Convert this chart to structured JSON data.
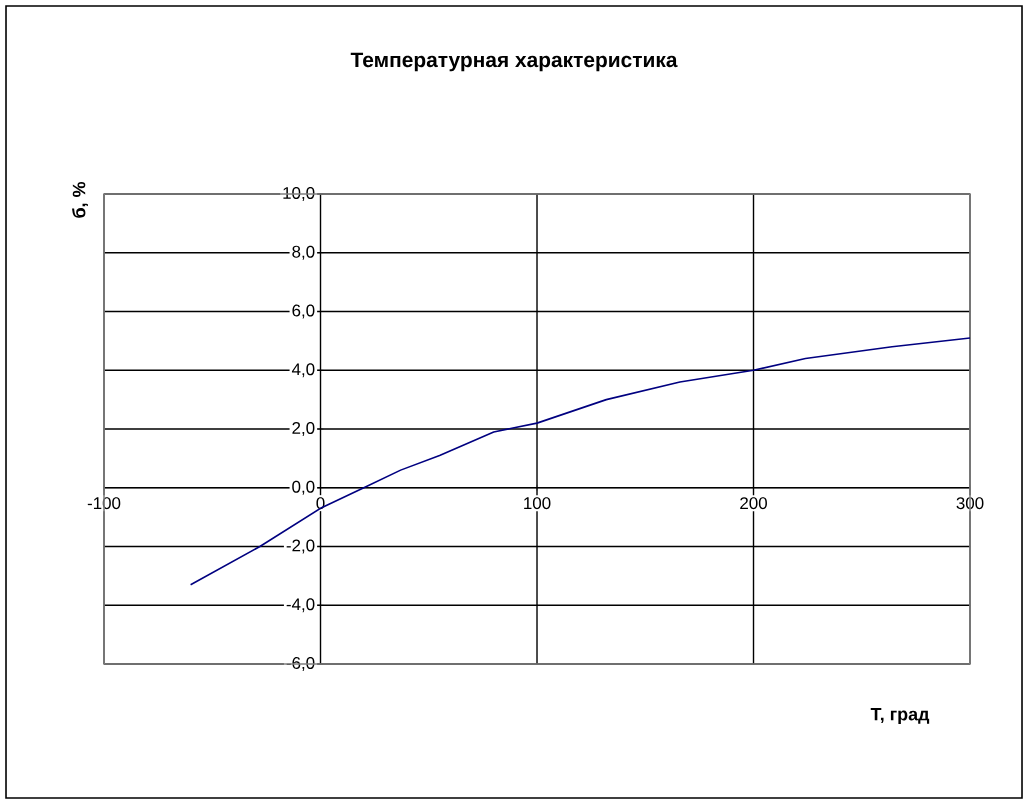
{
  "chart_data": {
    "type": "line",
    "title": "Температурная характеристика",
    "xlabel": "Т, град",
    "ylabel": "б, %",
    "x": [
      -60,
      -28,
      0,
      20,
      37,
      55,
      80,
      100,
      132,
      166,
      200,
      224,
      264,
      300
    ],
    "series": [
      {
        "color": "#000080",
        "values": [
          -3.3,
          -2.0,
          -0.7,
          0.0,
          0.6,
          1.1,
          1.9,
          2.2,
          3.0,
          3.6,
          4.0,
          4.4,
          4.8,
          5.1
        ]
      }
    ],
    "xlim": [
      -100,
      300
    ],
    "xticks": [
      -100,
      0,
      100,
      200,
      300
    ],
    "ylim": [
      -6,
      10
    ],
    "yticks": [
      {
        "value": -6,
        "label": "-6,0"
      },
      {
        "value": -4,
        "label": "-4,0"
      },
      {
        "value": -2,
        "label": "-2,0"
      },
      {
        "value": 0,
        "label": "0,0"
      },
      {
        "value": 2,
        "label": "2,0"
      },
      {
        "value": 4,
        "label": "4,0"
      },
      {
        "value": 6,
        "label": "6,0"
      },
      {
        "value": 8,
        "label": "8,0"
      },
      {
        "value": 10,
        "label": "10,0"
      }
    ],
    "grid": true,
    "marker": "none",
    "line_style": "solid"
  }
}
